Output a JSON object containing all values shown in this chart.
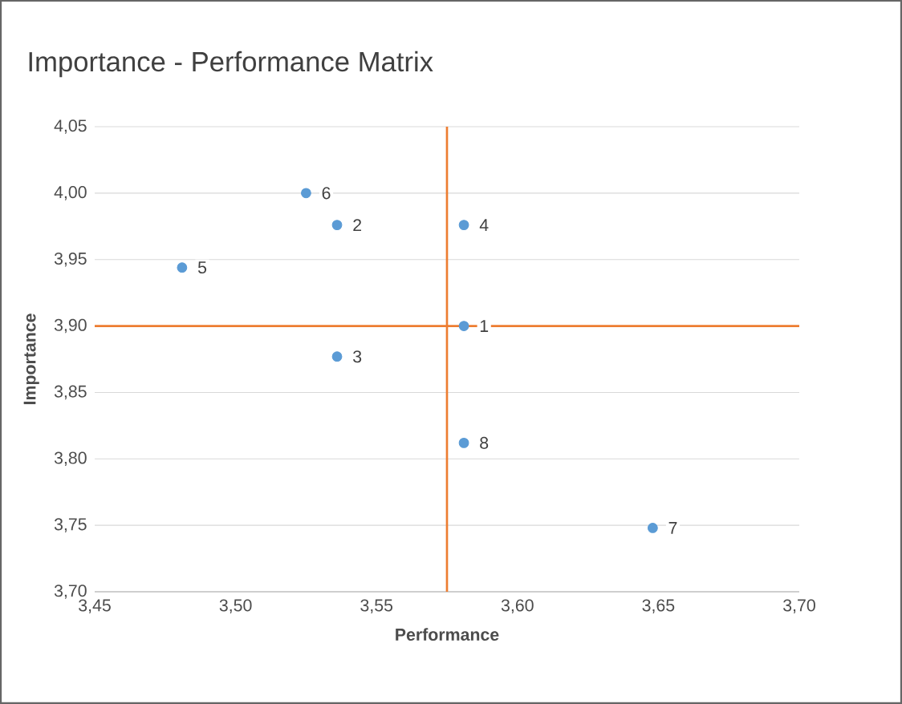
{
  "chart_data": {
    "type": "scatter",
    "title": "Importance - Performance Matrix",
    "xlabel": "Performance",
    "ylabel": "Importance",
    "series": [
      {
        "color": "#5b9bd5",
        "x": [
          3.581,
          3.536,
          3.536,
          3.581,
          3.481,
          3.525,
          3.648,
          3.581
        ],
        "values": [
          3.9,
          3.976,
          3.877,
          3.976,
          3.944,
          4.0,
          3.748,
          3.812
        ]
      }
    ],
    "xlim": [
      3.45,
      3.7
    ],
    "ylim": [
      3.7,
      4.05
    ],
    "xticks": [
      {
        "value": 3.45,
        "label": "3,45"
      },
      {
        "value": 3.5,
        "label": "3,50"
      },
      {
        "value": 3.55,
        "label": "3,55"
      },
      {
        "value": 3.6,
        "label": "3,60"
      },
      {
        "value": 3.65,
        "label": "3,65"
      },
      {
        "value": 3.7,
        "label": "3,70"
      }
    ],
    "yticks": [
      {
        "value": 3.7,
        "label": "3,70"
      },
      {
        "value": 3.75,
        "label": "3,75"
      },
      {
        "value": 3.8,
        "label": "3,80"
      },
      {
        "value": 3.85,
        "label": "3,85"
      },
      {
        "value": 3.9,
        "label": "3,90"
      },
      {
        "value": 3.95,
        "label": "3,95"
      },
      {
        "value": 4.0,
        "label": "4,00"
      },
      {
        "value": 4.05,
        "label": "4,05"
      }
    ],
    "grid": "y",
    "marker": "circle",
    "ref_lines": [
      {
        "axis": "x",
        "value": 3.575,
        "color": "#ed7d31"
      },
      {
        "axis": "y",
        "value": 3.9,
        "color": "#ed7d31"
      }
    ],
    "annotations": [
      {
        "text": "1",
        "x": 3.581,
        "y": 3.9
      },
      {
        "text": "2",
        "x": 3.536,
        "y": 3.976
      },
      {
        "text": "3",
        "x": 3.536,
        "y": 3.877
      },
      {
        "text": "4",
        "x": 3.581,
        "y": 3.976
      },
      {
        "text": "5",
        "x": 3.481,
        "y": 3.944
      },
      {
        "text": "6",
        "x": 3.525,
        "y": 4.0
      },
      {
        "text": "7",
        "x": 3.648,
        "y": 3.748
      },
      {
        "text": "8",
        "x": 3.581,
        "y": 3.812
      }
    ]
  }
}
